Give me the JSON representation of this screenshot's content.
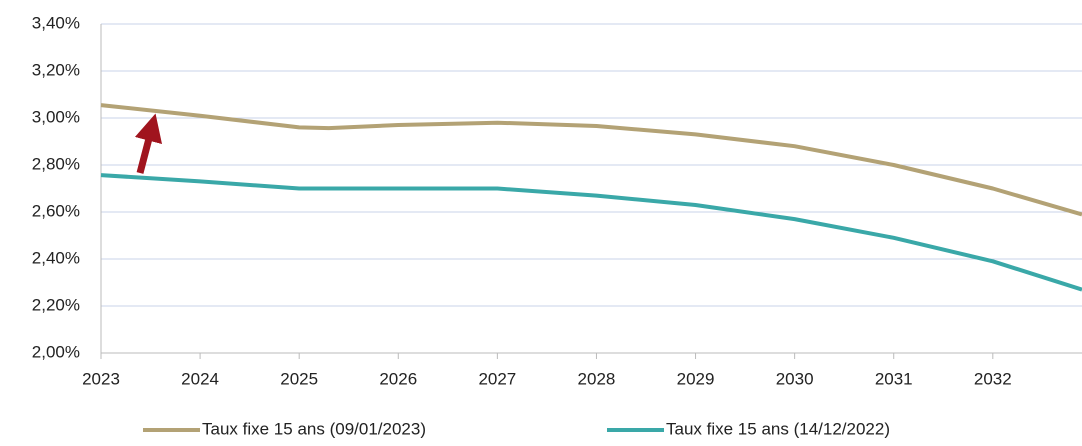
{
  "chart_data": {
    "type": "line",
    "x": [
      2023,
      2024,
      2025,
      2025.3,
      2026,
      2027,
      2028,
      2029,
      2030,
      2031,
      2032,
      2032.9
    ],
    "series": [
      {
        "name": "Taux fixe 15 ans (09/01/2023)",
        "color": "#b3a275",
        "values": [
          3.055,
          3.01,
          2.96,
          2.957,
          2.97,
          2.98,
          2.966,
          2.93,
          2.88,
          2.8,
          2.7,
          2.59
        ]
      },
      {
        "name": "Taux fixe 15 ans (14/12/2022)",
        "color": "#3aa8a8",
        "values": [
          2.757,
          2.73,
          2.7,
          2.7,
          2.7,
          2.7,
          2.67,
          2.63,
          2.57,
          2.49,
          2.39,
          2.27
        ]
      }
    ],
    "xlim": [
      2023,
      2032.9
    ],
    "xticks": [
      2023,
      2024,
      2025,
      2026,
      2027,
      2028,
      2029,
      2030,
      2031,
      2032
    ],
    "ylim": [
      2.0,
      3.4
    ],
    "yticks": [
      {
        "value": 2.0,
        "label": "2,00%"
      },
      {
        "value": 2.2,
        "label": "2,20%"
      },
      {
        "value": 2.4,
        "label": "2,40%"
      },
      {
        "value": 2.6,
        "label": "2,60%"
      },
      {
        "value": 2.8,
        "label": "2,80%"
      },
      {
        "value": 3.0,
        "label": "3,00%"
      },
      {
        "value": 3.2,
        "label": "3,20%"
      },
      {
        "value": 3.4,
        "label": "3,40%"
      }
    ],
    "grid": true,
    "legend": "bottom"
  }
}
